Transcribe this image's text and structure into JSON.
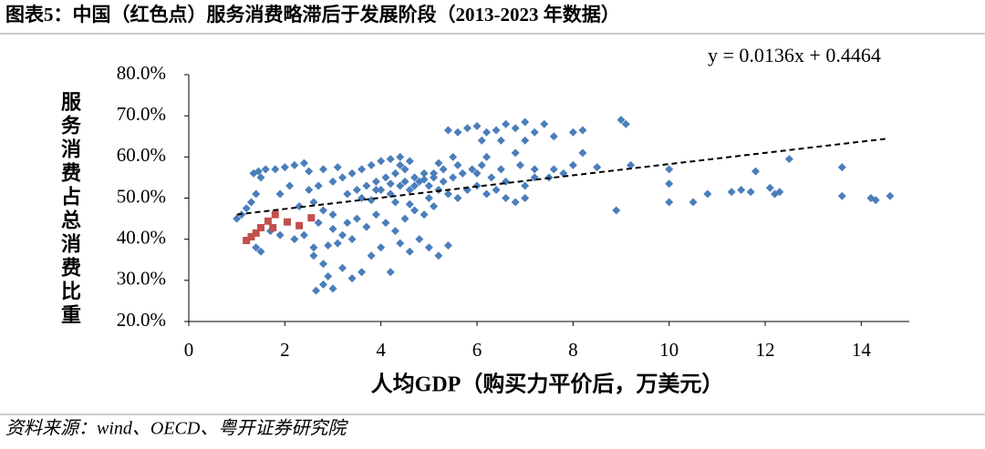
{
  "chart_data": {
    "type": "scatter",
    "title": "图表5：中国（红色点）服务消费略滞后于发展阶段（2013-2023 年数据）",
    "xlabel": "人均GDP（购买力平价后，万美元）",
    "ylabel": "服务消费占总消费比重",
    "source": "资料来源：wind、OECD、粤开证券研究院",
    "xlim": [
      0,
      15
    ],
    "xticks": [
      0,
      2,
      4,
      6,
      8,
      10,
      12,
      14
    ],
    "ylim": [
      20,
      80
    ],
    "yticks": [
      {
        "value": 20,
        "label": "20.0%"
      },
      {
        "value": 30,
        "label": "30.0%"
      },
      {
        "value": 40,
        "label": "40.0%"
      },
      {
        "value": 50,
        "label": "50.0%"
      },
      {
        "value": 60,
        "label": "60.0%"
      },
      {
        "value": 70,
        "label": "70.0%"
      },
      {
        "value": 80,
        "label": "80.0%"
      }
    ],
    "series": [
      {
        "color": "#4a7ebb",
        "marker": "diamond",
        "x": [
          1.0,
          1.1,
          1.2,
          1.3,
          1.4,
          1.35,
          1.45,
          1.6,
          1.8,
          1.5,
          2.0,
          2.2,
          2.4,
          1.9,
          2.1,
          2.3,
          2.6,
          2.8,
          3.0,
          1.7,
          1.9,
          2.2,
          1.4,
          1.5,
          2.4,
          2.6,
          2.9,
          3.1,
          2.6,
          2.8,
          2.9,
          3.0,
          2.65,
          2.8,
          3.2,
          3.4,
          3.6,
          3.8,
          4.0,
          4.2,
          4.4,
          4.6,
          4.8,
          5.0,
          5.2,
          5.4,
          4.3,
          3.3,
          3.5,
          3.7,
          3.9,
          4.1,
          4.5,
          4.7,
          4.9,
          5.1,
          3.2,
          2.7,
          3.0,
          3.4,
          2.5,
          2.7,
          3.0,
          3.2,
          3.4,
          3.6,
          3.8,
          4.0,
          4.2,
          4.4,
          3.1,
          2.8,
          2.5,
          3.3,
          3.5,
          3.7,
          3.9,
          4.1,
          4.3,
          4.5,
          4.7,
          4.9,
          5.1,
          5.3,
          5.5,
          5.7,
          5.9,
          6.1,
          4.0,
          4.2,
          4.4,
          4.6,
          4.8,
          5.0,
          5.2,
          5.4,
          5.6,
          5.8,
          6.0,
          6.2,
          6.4,
          6.6,
          6.8,
          7.0,
          3.6,
          3.8,
          4.3,
          4.6,
          5.0,
          5.3,
          5.6,
          6.0,
          6.3,
          6.6,
          7.0,
          7.2,
          6.5,
          6.9,
          4.5,
          4.7,
          4.9,
          5.1,
          4.2,
          3.9,
          6.2,
          6.8,
          7.2,
          7.6,
          8.0,
          8.2,
          7.5,
          7.8,
          8.5,
          9.2,
          10.0,
          5.4,
          5.6,
          5.8,
          6.0,
          6.2,
          6.4,
          6.6,
          6.8,
          7.0,
          7.2,
          7.4,
          6.1,
          6.5,
          7.0,
          7.6,
          8.0,
          8.2,
          9.0,
          9.1,
          8.9,
          10.0,
          10.0,
          10.5,
          10.8,
          11.3,
          11.5,
          11.7,
          11.8,
          12.2,
          12.3,
          12.1,
          12.5,
          13.6,
          13.6,
          14.2,
          14.3,
          14.6,
          5.2,
          5.5,
          4.6,
          4.4
        ],
        "values": [
          45,
          46,
          47.5,
          49,
          51,
          56,
          56.5,
          57,
          57,
          55,
          57.5,
          58,
          58.5,
          51,
          53,
          48,
          49,
          47,
          46,
          42,
          41,
          40,
          38,
          37,
          41,
          38,
          38.5,
          39,
          36,
          34,
          31,
          28,
          27.5,
          29,
          33,
          30.5,
          32,
          36,
          38,
          32,
          39,
          37,
          40,
          38,
          36,
          38.5,
          42,
          44,
          45,
          43,
          46,
          44,
          45,
          47,
          46,
          48,
          41,
          44,
          42.5,
          40,
          52,
          53,
          54,
          55,
          56,
          57,
          58,
          59,
          59.5,
          58,
          57.5,
          57,
          56.5,
          51,
          52,
          53,
          54,
          55,
          56,
          57,
          55,
          56,
          55,
          54,
          55,
          56,
          57,
          58,
          52,
          51,
          53,
          52,
          54,
          53,
          52,
          51,
          50,
          52,
          53,
          51,
          52,
          50,
          49,
          50,
          50,
          49.5,
          49,
          48.5,
          50,
          57,
          58,
          56,
          55,
          54,
          53,
          55,
          57,
          58,
          54,
          53,
          54.5,
          56,
          53.5,
          52,
          60,
          61,
          57,
          57,
          58,
          61,
          55,
          56,
          57.5,
          58,
          57,
          66.5,
          66,
          67,
          67.5,
          66,
          66.5,
          68,
          67,
          68.5,
          66,
          68,
          64,
          64,
          64,
          65,
          66,
          66.5,
          69,
          68,
          47,
          49,
          53.5,
          49,
          51,
          51.5,
          52,
          51.5,
          56.5,
          51,
          51.5,
          52.5,
          59.5,
          57.5,
          50.5,
          50,
          49.5,
          50.5,
          58.5,
          60,
          59,
          60
        ]
      },
      {
        "color": "#c0504d",
        "marker": "square",
        "x": [
          1.2,
          1.3,
          1.4,
          1.5,
          1.65,
          1.8,
          1.75,
          2.05,
          2.3,
          2.55
        ],
        "values": [
          39.7,
          40.6,
          41.5,
          42.8,
          44.4,
          46.0,
          42.8,
          44.2,
          43.3,
          45.2
        ]
      }
    ],
    "trendline": {
      "equation": "y = 0.0136x + 0.4464",
      "x": [
        1,
        14.5
      ],
      "values": [
        46.0,
        64.4
      ]
    }
  }
}
